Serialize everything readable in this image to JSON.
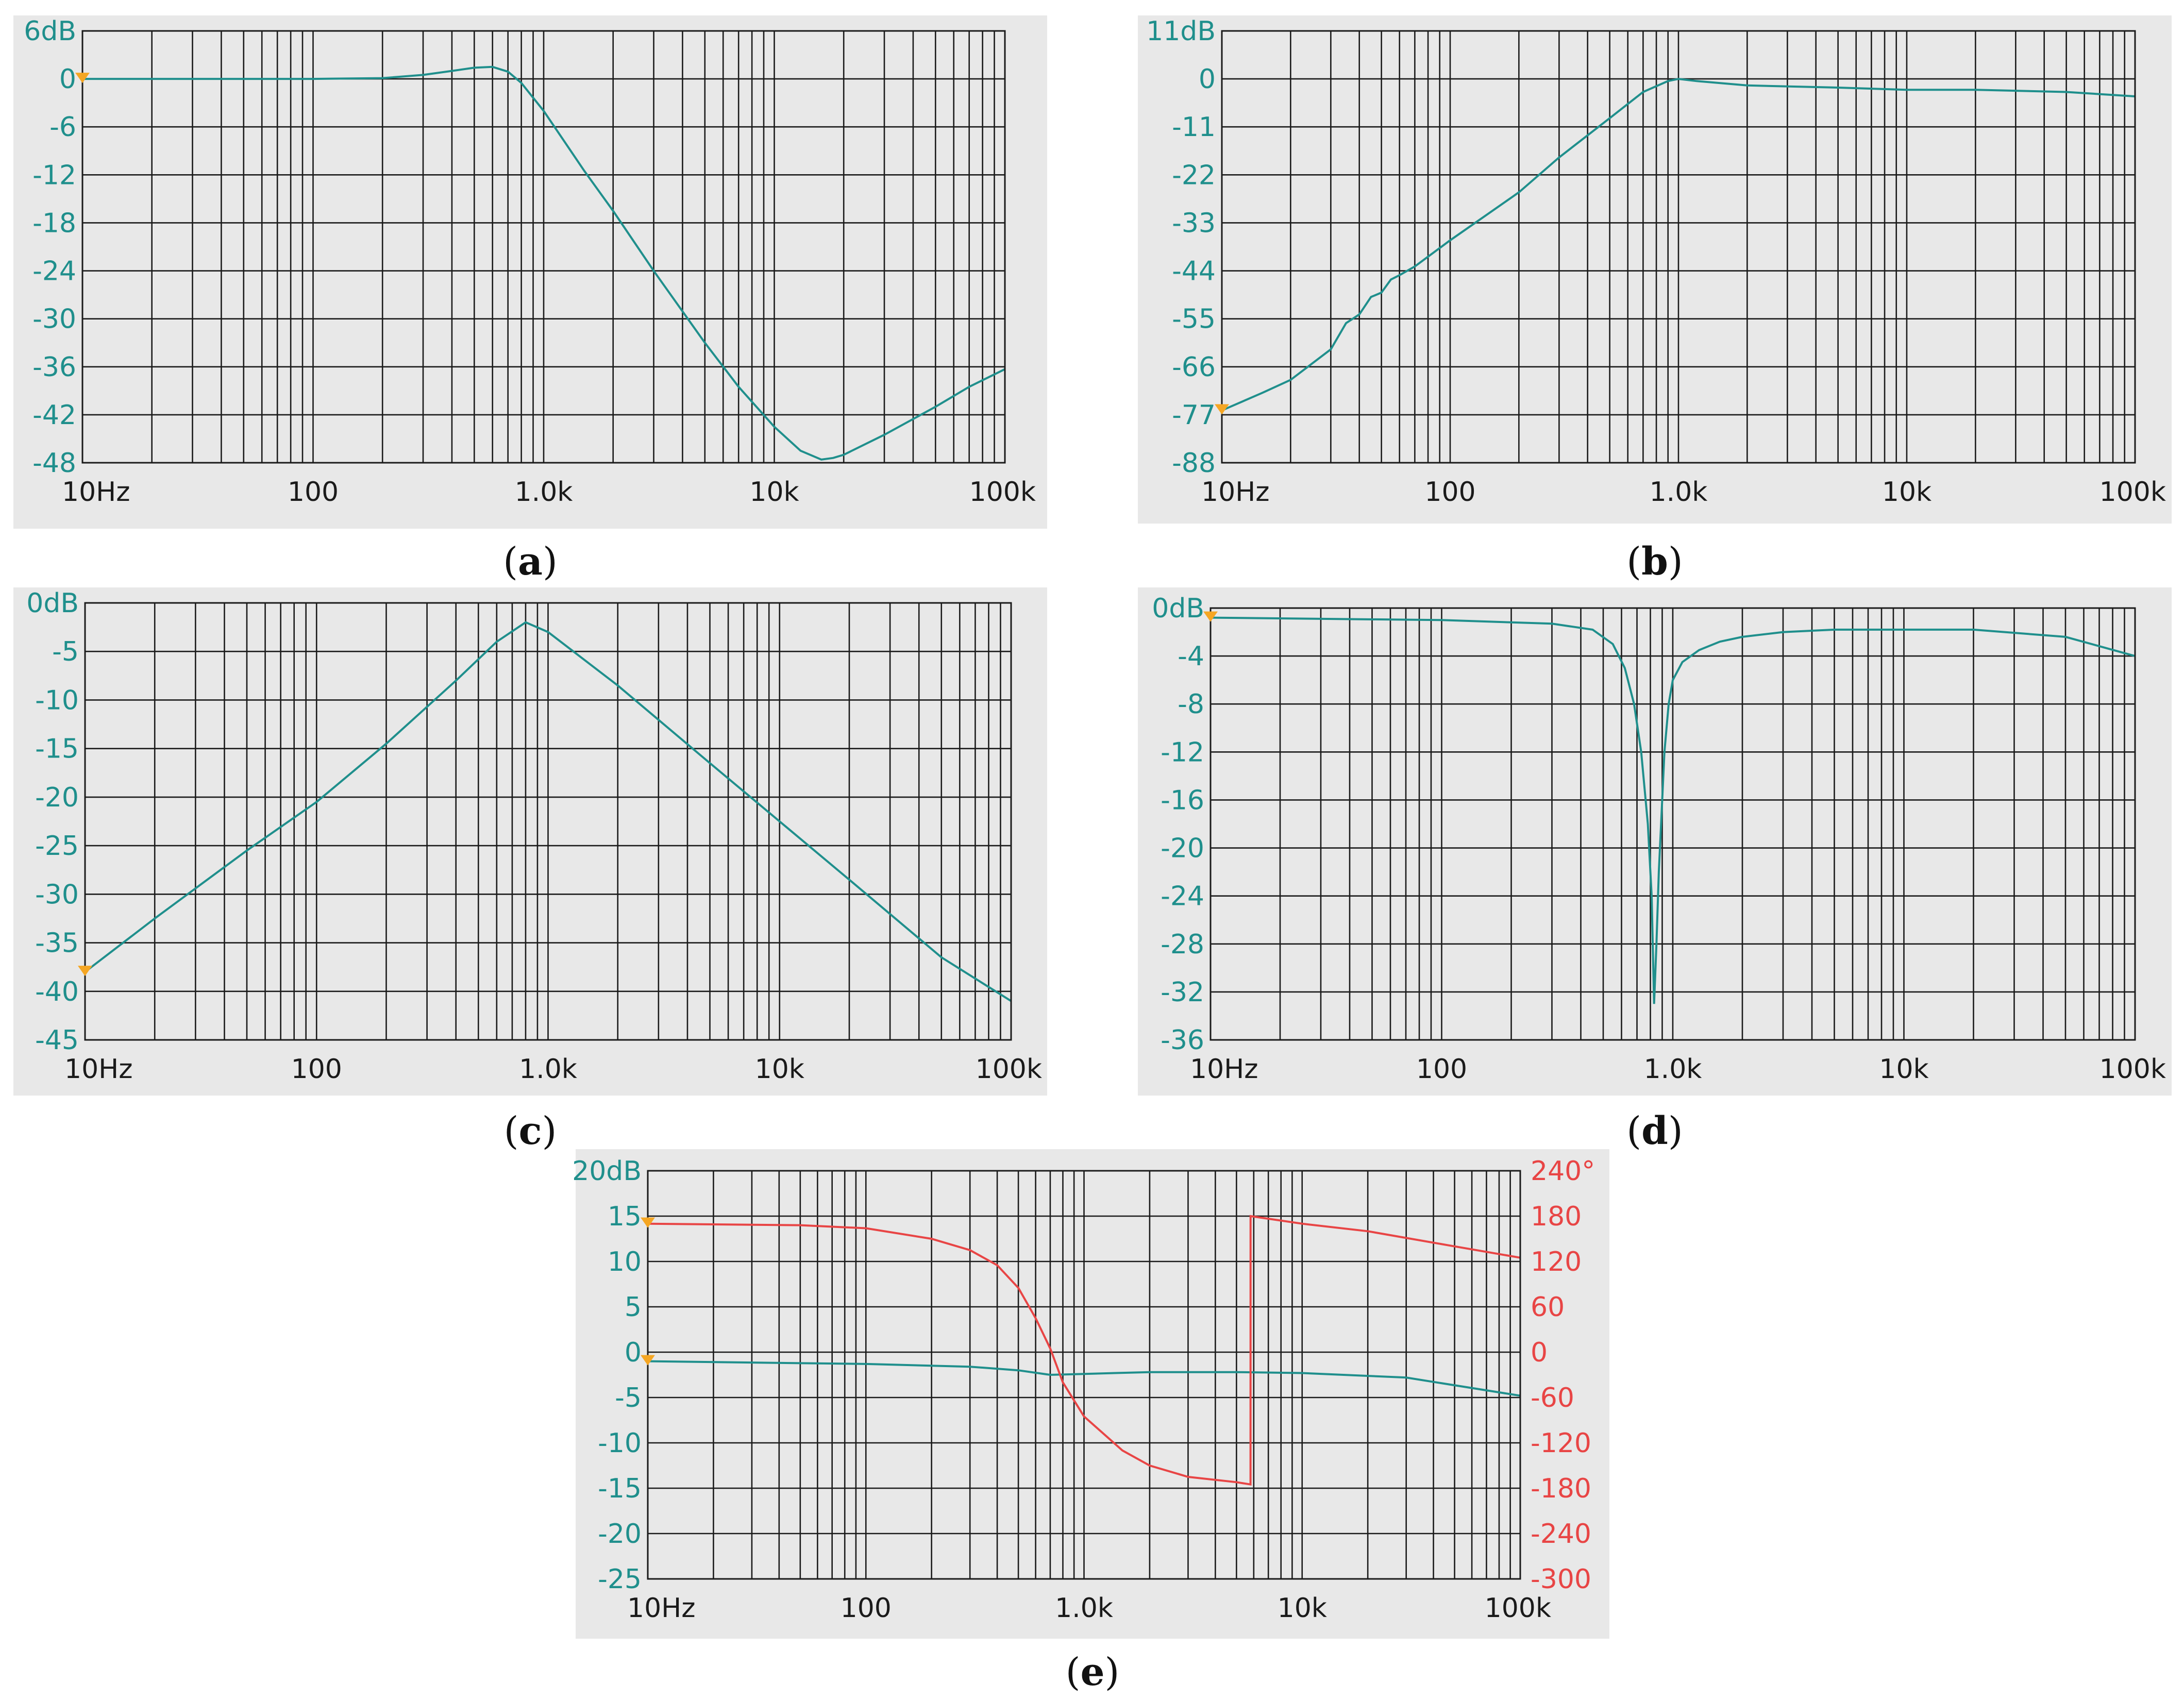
{
  "chart_data": [
    {
      "id": "a",
      "type": "line",
      "caption": "a",
      "x_scale": "log",
      "xlim": [
        10,
        100000
      ],
      "ylim": [
        -48,
        6
      ],
      "xticks": [
        "10Hz",
        "100",
        "1.0k",
        "10k",
        "100k"
      ],
      "yticks": [
        "6dB",
        "0",
        "-6",
        "-12",
        "-18",
        "-24",
        "-30",
        "-36",
        "-42",
        "-48"
      ],
      "series": [
        {
          "color": "#1f8f8c",
          "x": [
            10,
            20,
            50,
            100,
            200,
            300,
            400,
            500,
            600,
            700,
            800,
            1000,
            1500,
            2000,
            3000,
            5000,
            7000,
            10000,
            13000,
            16000,
            18000,
            20000,
            30000,
            50000,
            70000,
            100000
          ],
          "y": [
            0,
            0,
            0,
            0,
            0.1,
            0.5,
            1.0,
            1.4,
            1.5,
            0.9,
            -0.5,
            -4,
            -11.5,
            -16.5,
            -24,
            -33,
            -38.5,
            -43.5,
            -46.5,
            -47.6,
            -47.4,
            -47,
            -44.5,
            -41,
            -38.5,
            -36.3
          ]
        }
      ]
    },
    {
      "id": "b",
      "type": "line",
      "caption": "b",
      "x_scale": "log",
      "xlim": [
        10,
        100000
      ],
      "ylim": [
        -88,
        11
      ],
      "xticks": [
        "10Hz",
        "100",
        "1.0k",
        "10k",
        "100k"
      ],
      "yticks": [
        "11dB",
        "0",
        "-11",
        "-22",
        "-33",
        "-44",
        "-55",
        "-66",
        "-77",
        "-88"
      ],
      "series": [
        {
          "color": "#1f8f8c",
          "x": [
            10,
            15,
            20,
            30,
            35,
            40,
            45,
            50,
            55,
            60,
            70,
            100,
            200,
            300,
            500,
            700,
            900,
            1000,
            1200,
            2000,
            5000,
            10000,
            20000,
            50000,
            100000
          ],
          "y": [
            -76,
            -72,
            -69,
            -62,
            -56,
            -54,
            -50,
            -49,
            -46,
            -45,
            -43,
            -37,
            -26,
            -18,
            -9,
            -3,
            -0.5,
            0,
            -0.5,
            -1.5,
            -2,
            -2.5,
            -2.5,
            -3,
            -4
          ]
        }
      ]
    },
    {
      "id": "c",
      "type": "line",
      "caption": "c",
      "x_scale": "log",
      "xlim": [
        10,
        100000
      ],
      "ylim": [
        -45,
        0
      ],
      "xticks": [
        "10Hz",
        "100",
        "1.0k",
        "10k",
        "100k"
      ],
      "yticks": [
        "0dB",
        "-5",
        "-10",
        "-15",
        "-20",
        "-25",
        "-30",
        "-35",
        "-40",
        "-45"
      ],
      "series": [
        {
          "color": "#1f8f8c",
          "x": [
            10,
            20,
            50,
            100,
            200,
            400,
            600,
            800,
            1000,
            2000,
            5000,
            10000,
            20000,
            50000,
            100000
          ],
          "y": [
            -38,
            -32.5,
            -25.5,
            -20.5,
            -14.5,
            -8,
            -4,
            -2,
            -3,
            -8.5,
            -16.5,
            -22.5,
            -28.5,
            -36.5,
            -41
          ]
        }
      ]
    },
    {
      "id": "d",
      "type": "line",
      "caption": "d",
      "x_scale": "log",
      "xlim": [
        10,
        100000
      ],
      "ylim": [
        -36,
        0
      ],
      "xticks": [
        "10Hz",
        "100",
        "1.0k",
        "10k",
        "100k"
      ],
      "yticks": [
        "0dB",
        "-4",
        "-8",
        "-12",
        "-16",
        "-20",
        "-24",
        "-28",
        "-32",
        "-36"
      ],
      "series": [
        {
          "color": "#1f8f8c",
          "x": [
            10,
            100,
            300,
            450,
            550,
            620,
            680,
            730,
            780,
            810,
            830,
            850,
            870,
            890,
            920,
            960,
            1000,
            1100,
            1300,
            1600,
            2000,
            3000,
            5000,
            10000,
            20000,
            50000,
            100000
          ],
          "y": [
            -0.8,
            -1,
            -1.3,
            -1.8,
            -3,
            -5,
            -8,
            -12,
            -18,
            -24,
            -33,
            -28,
            -22,
            -18,
            -12,
            -8,
            -6,
            -4.5,
            -3.5,
            -2.8,
            -2.4,
            -2,
            -1.8,
            -1.8,
            -1.8,
            -2.4,
            -4
          ]
        }
      ]
    },
    {
      "id": "e",
      "type": "line",
      "caption": "e",
      "x_scale": "log",
      "xlim": [
        10,
        100000
      ],
      "ylim": [
        -25,
        20
      ],
      "ylim_right": [
        -300,
        240
      ],
      "xticks": [
        "10Hz",
        "100",
        "1.0k",
        "10k",
        "100k"
      ],
      "yticks": [
        "20dB",
        "15",
        "10",
        "5",
        "0",
        "-5",
        "-10",
        "-15",
        "-20",
        "-25"
      ],
      "yticks_right": [
        "240°",
        "180",
        "120",
        "60",
        "0",
        "-60",
        "-120",
        "-180",
        "-240",
        "-300"
      ],
      "series": [
        {
          "color": "#1f8f8c",
          "axis": "left",
          "x": [
            10,
            100,
            300,
            500,
            700,
            1000,
            2000,
            5000,
            10000,
            30000,
            100000
          ],
          "y": [
            -1,
            -1.3,
            -1.6,
            -2,
            -2.5,
            -2.4,
            -2.2,
            -2.2,
            -2.3,
            -2.8,
            -4.8
          ]
        },
        {
          "color": "#e84545",
          "axis": "right",
          "x": [
            10,
            50,
            100,
            200,
            300,
            400,
            500,
            600,
            700,
            800,
            1000,
            1500,
            2000,
            3000,
            5000,
            5800,
            5801,
            10000,
            20000,
            50000,
            100000
          ],
          "y": [
            170,
            168,
            164,
            150,
            135,
            115,
            85,
            45,
            5,
            -40,
            -85,
            -130,
            -150,
            -165,
            -172,
            -175,
            180,
            170,
            160,
            140,
            125
          ]
        }
      ]
    }
  ]
}
